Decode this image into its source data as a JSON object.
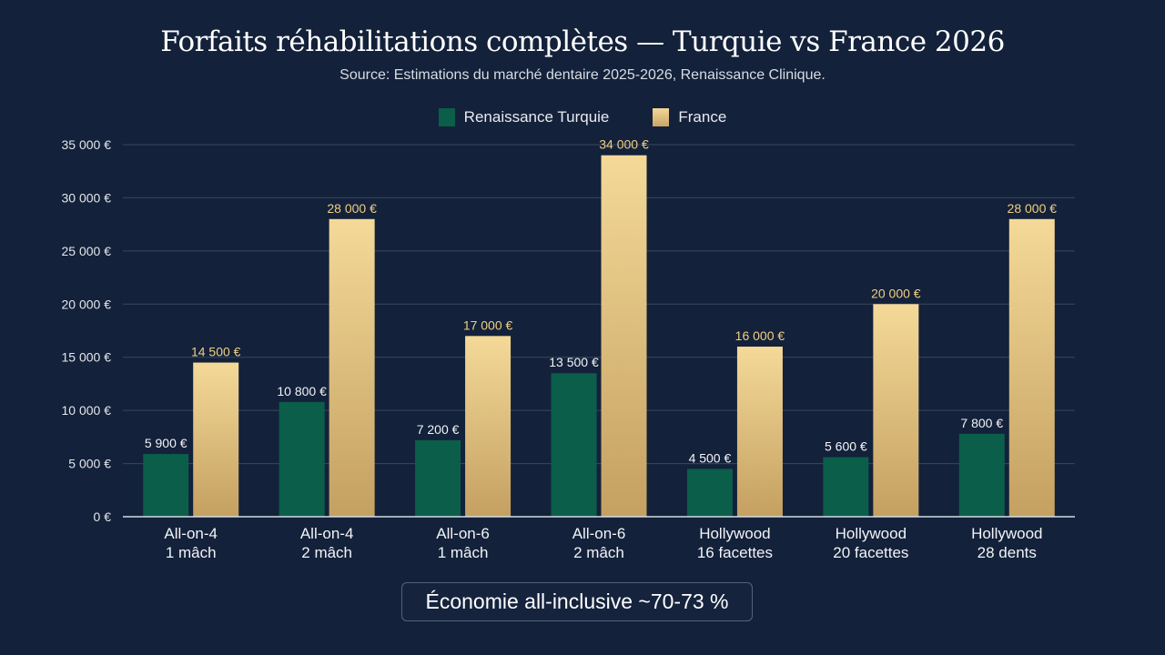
{
  "chart_data": {
    "type": "bar",
    "title": "Forfaits réhabilitations complètes — Turquie vs France 2026",
    "subtitle": "Source: Estimations du marché dentaire 2025-2026, Renaissance Clinique.",
    "categories": [
      [
        "All-on-4",
        "1 mâch"
      ],
      [
        "All-on-4",
        "2 mâch"
      ],
      [
        "All-on-6",
        "1 mâch"
      ],
      [
        "All-on-6",
        "2 mâch"
      ],
      [
        "Hollywood",
        "16 facettes"
      ],
      [
        "Hollywood",
        "20 facettes"
      ],
      [
        "Hollywood",
        "28 dents"
      ]
    ],
    "series": [
      {
        "name": "Renaissance Turquie",
        "color": "#0b5e4a",
        "values": [
          5900,
          10800,
          7200,
          13500,
          4500,
          5600,
          7800
        ],
        "labels": [
          "5 900 €",
          "10 800 €",
          "7 200 €",
          "13 500 €",
          "4 500 €",
          "5 600 €",
          "7 800 €"
        ]
      },
      {
        "name": "France",
        "color": "#e2c27f",
        "values": [
          14500,
          28000,
          17000,
          34000,
          16000,
          20000,
          28000
        ],
        "labels": [
          "14 500 €",
          "28 000 €",
          "17 000 €",
          "34 000 €",
          "16 000 €",
          "20 000 €",
          "28 000 €"
        ]
      }
    ],
    "ylim": [
      0,
      35000
    ],
    "yticks": [
      0,
      5000,
      10000,
      15000,
      20000,
      25000,
      30000,
      35000
    ],
    "ytick_labels": [
      "0 €",
      "5 000 €",
      "10 000 €",
      "15 000 €",
      "20 000 €",
      "25 000 €",
      "30 000 €",
      "35 000 €"
    ],
    "grid": true,
    "legend_position": "top-center"
  },
  "callout": "Économie all-inclusive ~70-73 %"
}
